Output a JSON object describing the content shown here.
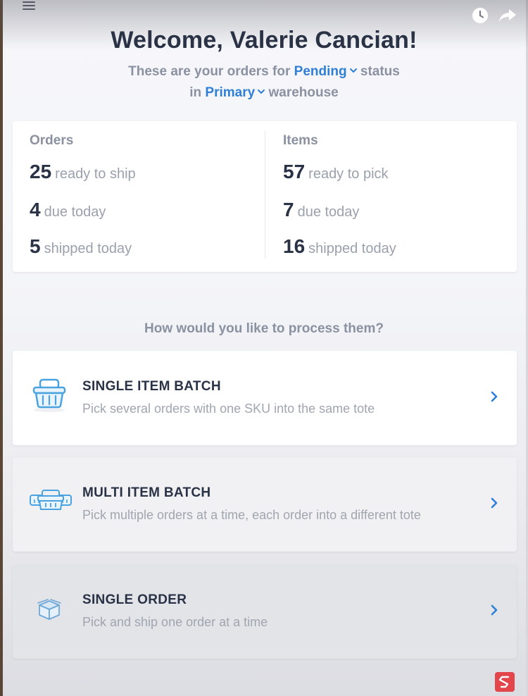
{
  "header": {
    "menu_icon": "hamburger-menu-icon",
    "clock_icon": "clock-icon",
    "share_icon": "share-arrow-icon"
  },
  "welcome": {
    "title": "Welcome, Valerie Cancian!",
    "line1_prefix": "These are your orders for",
    "status_value": "Pending",
    "line1_suffix": "status",
    "line2_prefix": "in",
    "warehouse_value": "Primary",
    "line2_suffix": "warehouse"
  },
  "stats": {
    "orders": {
      "title": "Orders",
      "rows": [
        {
          "value": "25",
          "label": "ready to ship"
        },
        {
          "value": "4",
          "label": "due today"
        },
        {
          "value": "5",
          "label": "shipped today"
        }
      ]
    },
    "items": {
      "title": "Items",
      "rows": [
        {
          "value": "57",
          "label": "ready to pick"
        },
        {
          "value": "7",
          "label": "due today"
        },
        {
          "value": "16",
          "label": "shipped today"
        }
      ]
    }
  },
  "question": "How would you like to process them?",
  "options": [
    {
      "title": "SINGLE ITEM BATCH",
      "description": "Pick several orders with one SKU into the same tote",
      "icon": "basket-icon"
    },
    {
      "title": "MULTI ITEM BATCH",
      "description": "Pick multiple orders at a time, each order into a different tote",
      "icon": "multi-basket-icon"
    },
    {
      "title": "SINGLE ORDER",
      "description": "Pick and ship one order at a time",
      "icon": "box-icon"
    }
  ],
  "colors": {
    "accent": "#2f7fd6",
    "heading": "#2a3246",
    "muted": "#8a91a0",
    "brand_badge": "#e2454a"
  }
}
